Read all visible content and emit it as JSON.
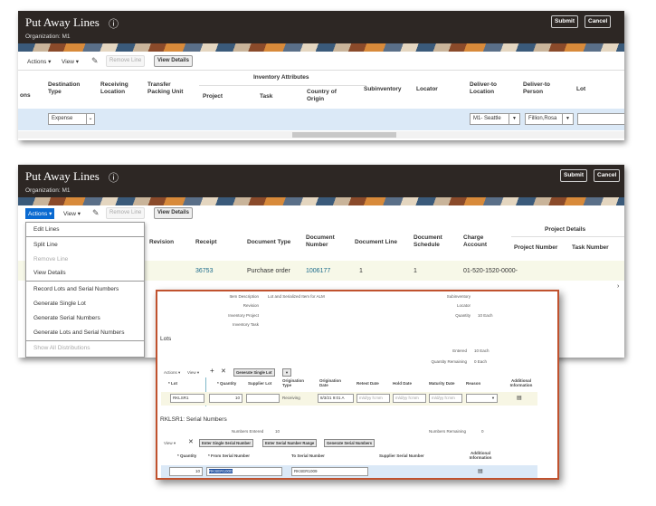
{
  "page_title": "Put Away Lines",
  "organization": "Organization: M1",
  "submit": "Submit",
  "cancel": "Cancel",
  "toolbar": {
    "actions": "Actions ▾",
    "view": "View ▾",
    "remove_line": "Remove Line",
    "view_details": "View Details"
  },
  "panel1": {
    "headers": {
      "ons": "ons",
      "destination_type": "Destination Type",
      "receiving_location": "Receiving Location",
      "transfer_packing_unit": "Transfer Packing Unit",
      "inventory_attributes": "Inventory Attributes",
      "project": "Project",
      "task": "Task",
      "country_of_origin": "Country of Origin",
      "subinventory": "Subinventory",
      "locator": "Locator",
      "deliver_to_location": "Deliver-to Location",
      "deliver_to_person": "Deliver-to Person",
      "lot": "Lot"
    },
    "row": {
      "destination_type": "Expense",
      "deliver_to_location": "M1- Seattle",
      "deliver_to_person": "Fillion,Rosa"
    }
  },
  "panel2": {
    "headers": {
      "revision": "Revision",
      "receipt": "Receipt",
      "document_type": "Document Type",
      "document_number": "Document Number",
      "document_line": "Document Line",
      "document_schedule": "Document Schedule",
      "charge_account": "Charge Account",
      "project_details": "Project Details",
      "project_number": "Project Number",
      "task_number": "Task Number"
    },
    "row": {
      "receipt": "36753",
      "document_type": "Purchase order",
      "document_number": "1006177",
      "document_line": "1",
      "document_schedule": "1",
      "charge_account": "01-520-1520-0000-"
    },
    "menu": [
      "Edit Lines",
      "Split Line",
      "Remove Line",
      "View Details",
      "Record Lots and Serial Numbers",
      "Generate Single Lot",
      "Generate Serial Numbers",
      "Generate Lots and Serial Numbers",
      "Show All Distributions"
    ]
  },
  "detail": {
    "item_description_label": "Item Description",
    "item_description": "Lot and Serialized Item for ALM",
    "revision_label": "Revision",
    "inventory_project_label": "Inventory Project",
    "inventory_task_label": "Inventory Task",
    "subinventory_label": "Subinventory",
    "locator_label": "Locator",
    "quantity_label": "Quantity",
    "quantity": "10 Each",
    "lots_heading": "Lots",
    "entered_label": "Entered",
    "entered": "10 Each",
    "qty_remaining_label": "Quantity Remaining",
    "qty_remaining": "0 Each",
    "lots_toolbar": {
      "actions": "Actions ▾",
      "view": "View ▾",
      "generate_single_lot": "Generate Single Lot"
    },
    "lot_headers": {
      "lot": "* Lot",
      "quantity": "* Quantity",
      "supplier_lot": "Supplier Lot",
      "origination_type": "Origination Type",
      "origination_date": "Origination Date",
      "retest_date": "Retest Date",
      "hold_date": "Hold Date",
      "maturity_date": "Maturity Date",
      "reason": "Reason",
      "additional_information": "Additional Information"
    },
    "lot_row": {
      "lot": "RKLSR1",
      "quantity": "10",
      "origination_type": "Receiving",
      "origination_date": "8/3/21 9:01 A",
      "date_placeholder": "m/d/yy h:mm"
    },
    "serial_heading": "RKLSR1: Serial Numbers",
    "numbers_entered_label": "Numbers Entered",
    "numbers_entered": "10",
    "numbers_remaining_label": "Numbers Remaining",
    "numbers_remaining": "0",
    "serial_toolbar": {
      "view": "View ▾",
      "enter_single": "Enter Single Serial Number",
      "enter_range": "Enter Serial Number Range",
      "generate": "Generate Serial Numbers"
    },
    "serial_headers": {
      "quantity": "* Quantity",
      "from": "* From Serial Number",
      "to": "To Serial Number",
      "supplier": "Supplier Serial Number",
      "additional_information": "Additional Information"
    },
    "serial_row": {
      "quantity": "10",
      "from": "RKSER1000",
      "to": "RKSER1009"
    }
  },
  "colors": {
    "header": "#2d2724",
    "accent_border": "#c0522e",
    "selected_row": "#dbe9f7",
    "active_menu": "#0a6ad1"
  }
}
